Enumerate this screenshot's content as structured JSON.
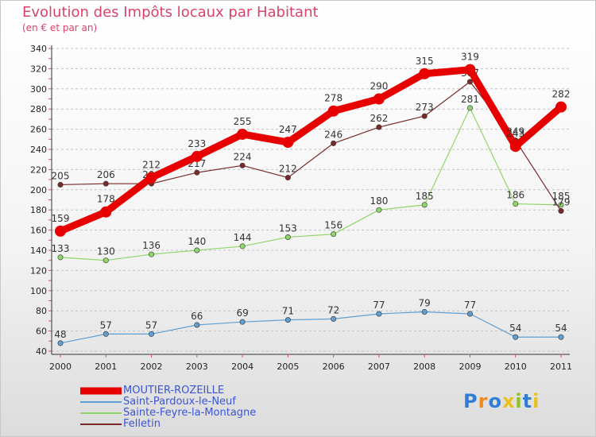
{
  "header": {
    "title": "Evolution des Impôts locaux par Habitant",
    "subtitle": "(en € et par an)"
  },
  "logo": {
    "text": "Proxiti",
    "letters": [
      "P",
      "r",
      "o",
      "x",
      "i",
      "t",
      "i"
    ],
    "colors": [
      "#2f7fd6",
      "#f08a1c",
      "#2f7fd6",
      "#e8c21a",
      "#8fc21e",
      "#2f7fd6",
      "#e8c21a"
    ]
  },
  "chart_data": {
    "type": "line",
    "title": "Evolution des Impôts locaux par Habitant",
    "subtitle": "(en € et par an)",
    "xlabel": "",
    "ylabel": "",
    "categories": [
      "2000",
      "2001",
      "2002",
      "2003",
      "2004",
      "2005",
      "2006",
      "2007",
      "2008",
      "2009",
      "2010",
      "2011"
    ],
    "ylim": [
      40,
      340
    ],
    "yticks": [
      40,
      60,
      80,
      100,
      120,
      140,
      160,
      180,
      200,
      220,
      240,
      260,
      280,
      300,
      320,
      340
    ],
    "grid": "horizontal dashed",
    "legend_position": "bottom-left",
    "series": [
      {
        "name": "MOUTIER-ROZEILLE",
        "color": "#e60000",
        "emphasis": true,
        "values": [
          159,
          178,
          212,
          233,
          255,
          247,
          278,
          290,
          315,
          319,
          243,
          282
        ]
      },
      {
        "name": "Saint-Pardoux-le-Neuf",
        "color": "#5f9fd3",
        "emphasis": false,
        "values": [
          48,
          57,
          57,
          66,
          69,
          71,
          72,
          77,
          79,
          77,
          54,
          54
        ]
      },
      {
        "name": "Sainte-Feyre-la-Montagne",
        "color": "#8fd66a",
        "emphasis": false,
        "values": [
          133,
          130,
          136,
          140,
          144,
          153,
          156,
          180,
          185,
          281,
          186,
          185
        ]
      },
      {
        "name": "Felletin",
        "color": "#7a2a2a",
        "emphasis": false,
        "values": [
          205,
          206,
          206,
          217,
          224,
          212,
          246,
          262,
          273,
          307,
          249,
          179
        ]
      }
    ]
  }
}
